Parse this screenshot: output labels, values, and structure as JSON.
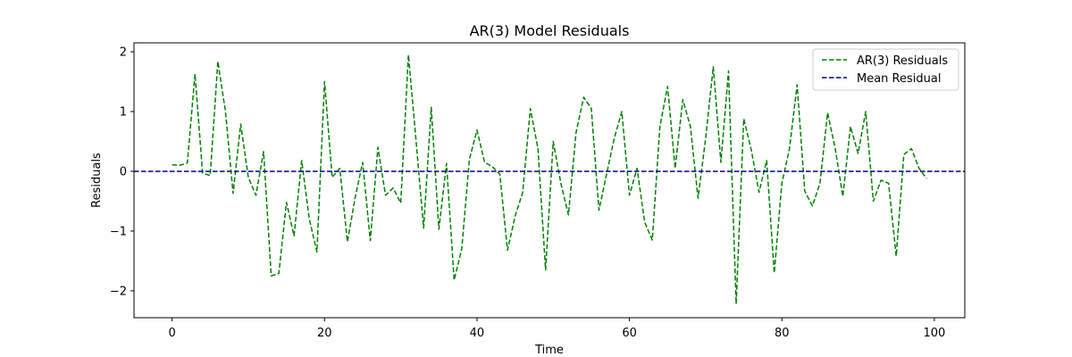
{
  "chart_data": {
    "type": "line",
    "title": "AR(3) Model Residuals",
    "xlabel": "Time",
    "ylabel": "Residuals",
    "xlim": [
      -5,
      104
    ],
    "ylim": [
      -2.45,
      2.15
    ],
    "xticks": [
      0,
      20,
      40,
      60,
      80,
      100
    ],
    "yticks": [
      -2,
      -1,
      0,
      1,
      2
    ],
    "xtick_labels": [
      "0",
      "20",
      "40",
      "60",
      "80",
      "100"
    ],
    "ytick_labels": [
      "−2",
      "−1",
      "0",
      "1",
      "2"
    ],
    "grid": false,
    "legend_position": "top-right",
    "series": [
      {
        "name": "AR(3) Residuals",
        "color": "#008000",
        "style": "dashed",
        "x": [
          0,
          1,
          2,
          3,
          4,
          5,
          6,
          7,
          8,
          9,
          10,
          11,
          12,
          13,
          14,
          15,
          16,
          17,
          18,
          19,
          20,
          21,
          22,
          23,
          24,
          25,
          26,
          27,
          28,
          29,
          30,
          31,
          32,
          33,
          34,
          35,
          36,
          37,
          38,
          39,
          40,
          41,
          42,
          43,
          44,
          45,
          46,
          47,
          48,
          49,
          50,
          51,
          52,
          53,
          54,
          55,
          56,
          57,
          58,
          59,
          60,
          61,
          62,
          63,
          64,
          65,
          66,
          67,
          68,
          69,
          70,
          71,
          72,
          73,
          74,
          75,
          76,
          77,
          78,
          79,
          80,
          81,
          82,
          83,
          84,
          85,
          86,
          87,
          88,
          89,
          90,
          91,
          92,
          93,
          94,
          95,
          96,
          97,
          98,
          99
        ],
        "values": [
          0.11,
          0.1,
          0.14,
          1.63,
          -0.03,
          -0.07,
          1.84,
          1.0,
          -0.37,
          0.79,
          -0.1,
          -0.4,
          0.33,
          -1.75,
          -1.71,
          -0.52,
          -1.08,
          0.18,
          -0.8,
          -1.35,
          1.5,
          -0.1,
          0.05,
          -1.18,
          -0.45,
          0.15,
          -1.16,
          0.4,
          -0.4,
          -0.28,
          -0.53,
          1.95,
          0.52,
          -0.95,
          1.07,
          -0.97,
          0.13,
          -1.82,
          -1.3,
          0.2,
          0.69,
          0.15,
          0.08,
          -0.05,
          -1.32,
          -0.75,
          -0.35,
          1.05,
          0.38,
          -1.65,
          0.5,
          -0.2,
          -0.73,
          0.65,
          1.24,
          1.05,
          -0.65,
          -0.05,
          0.55,
          1.0,
          -0.4,
          0.05,
          -0.85,
          -1.15,
          0.75,
          1.42,
          0.05,
          1.2,
          0.75,
          -0.45,
          0.55,
          1.75,
          0.15,
          1.68,
          -2.22,
          0.88,
          0.35,
          -0.35,
          0.18,
          -1.7,
          -0.2,
          0.38,
          1.45,
          -0.33,
          -0.58,
          -0.2,
          0.98,
          0.38,
          -0.42,
          0.75,
          0.3,
          1.0,
          -0.5,
          -0.15,
          -0.2,
          -1.42,
          0.28,
          0.38,
          0.05,
          -0.12
        ]
      },
      {
        "name": "Mean Residual",
        "color": "#00008b",
        "style": "dashed",
        "constant": 0.0
      }
    ]
  }
}
